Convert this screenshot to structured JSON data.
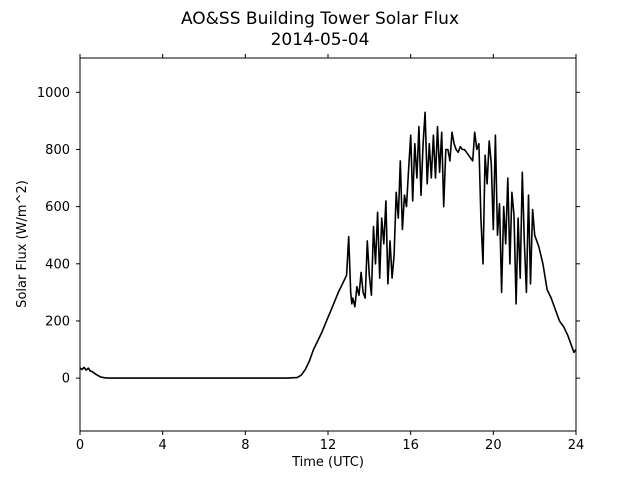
{
  "chart_data": {
    "type": "line",
    "title": "AO&SS Building Tower Solar Flux",
    "subtitle": "2014-05-04",
    "xlabel": "Time (UTC)",
    "ylabel": "Solar Flux (W/m^2)",
    "xlim": [
      0,
      24
    ],
    "ylim": [
      -185,
      1120
    ],
    "x_ticks": [
      0,
      4,
      8,
      12,
      16,
      20,
      24
    ],
    "y_ticks": [
      0,
      200,
      400,
      600,
      800,
      1000
    ],
    "grid": false,
    "legend": "none",
    "series": [
      {
        "color": "#000000",
        "x": [
          0,
          0.1,
          0.2,
          0.3,
          0.4,
          0.5,
          0.6,
          0.8,
          1.0,
          1.2,
          1.4,
          2,
          4,
          6,
          8,
          10,
          10.5,
          10.7,
          10.9,
          11.1,
          11.3,
          11.5,
          11.7,
          11.9,
          12.1,
          12.3,
          12.5,
          12.7,
          12.9,
          13.0,
          13.1,
          13.15,
          13.2,
          13.3,
          13.4,
          13.5,
          13.6,
          13.7,
          13.8,
          13.9,
          14.0,
          14.1,
          14.2,
          14.3,
          14.4,
          14.5,
          14.6,
          14.7,
          14.8,
          14.9,
          15.0,
          15.1,
          15.2,
          15.3,
          15.4,
          15.5,
          15.6,
          15.7,
          15.8,
          15.9,
          16.0,
          16.1,
          16.2,
          16.3,
          16.4,
          16.5,
          16.6,
          16.7,
          16.8,
          16.9,
          17.0,
          17.1,
          17.2,
          17.3,
          17.4,
          17.5,
          17.6,
          17.7,
          17.8,
          17.9,
          18.0,
          18.1,
          18.2,
          18.3,
          18.4,
          18.5,
          18.6,
          18.7,
          18.8,
          18.9,
          19.0,
          19.1,
          19.2,
          19.3,
          19.4,
          19.5,
          19.6,
          19.7,
          19.8,
          19.9,
          20.0,
          20.1,
          20.2,
          20.3,
          20.4,
          20.5,
          20.6,
          20.7,
          20.8,
          20.9,
          21.0,
          21.1,
          21.2,
          21.3,
          21.4,
          21.5,
          21.6,
          21.7,
          21.8,
          21.9,
          22.0,
          22.2,
          22.4,
          22.6,
          22.8,
          23.0,
          23.2,
          23.4,
          23.6,
          23.8,
          23.9,
          24.0
        ],
        "y": [
          35,
          30,
          38,
          28,
          35,
          25,
          22,
          12,
          4,
          1,
          0,
          0,
          0,
          0,
          0,
          0,
          2,
          10,
          30,
          60,
          100,
          130,
          160,
          195,
          230,
          265,
          300,
          330,
          360,
          495,
          300,
          260,
          280,
          250,
          320,
          290,
          370,
          300,
          280,
          480,
          360,
          290,
          530,
          400,
          580,
          350,
          560,
          470,
          620,
          330,
          480,
          350,
          430,
          650,
          560,
          760,
          520,
          640,
          600,
          730,
          850,
          620,
          820,
          700,
          880,
          640,
          820,
          930,
          680,
          820,
          700,
          850,
          700,
          880,
          720,
          860,
          600,
          800,
          800,
          760,
          860,
          820,
          800,
          790,
          810,
          800,
          800,
          790,
          780,
          770,
          760,
          860,
          800,
          820,
          560,
          400,
          780,
          680,
          830,
          750,
          520,
          850,
          500,
          610,
          300,
          600,
          470,
          700,
          400,
          650,
          570,
          260,
          560,
          350,
          720,
          480,
          300,
          640,
          330,
          590,
          500,
          460,
          400,
          310,
          280,
          240,
          200,
          180,
          150,
          110,
          90,
          100
        ]
      }
    ]
  }
}
